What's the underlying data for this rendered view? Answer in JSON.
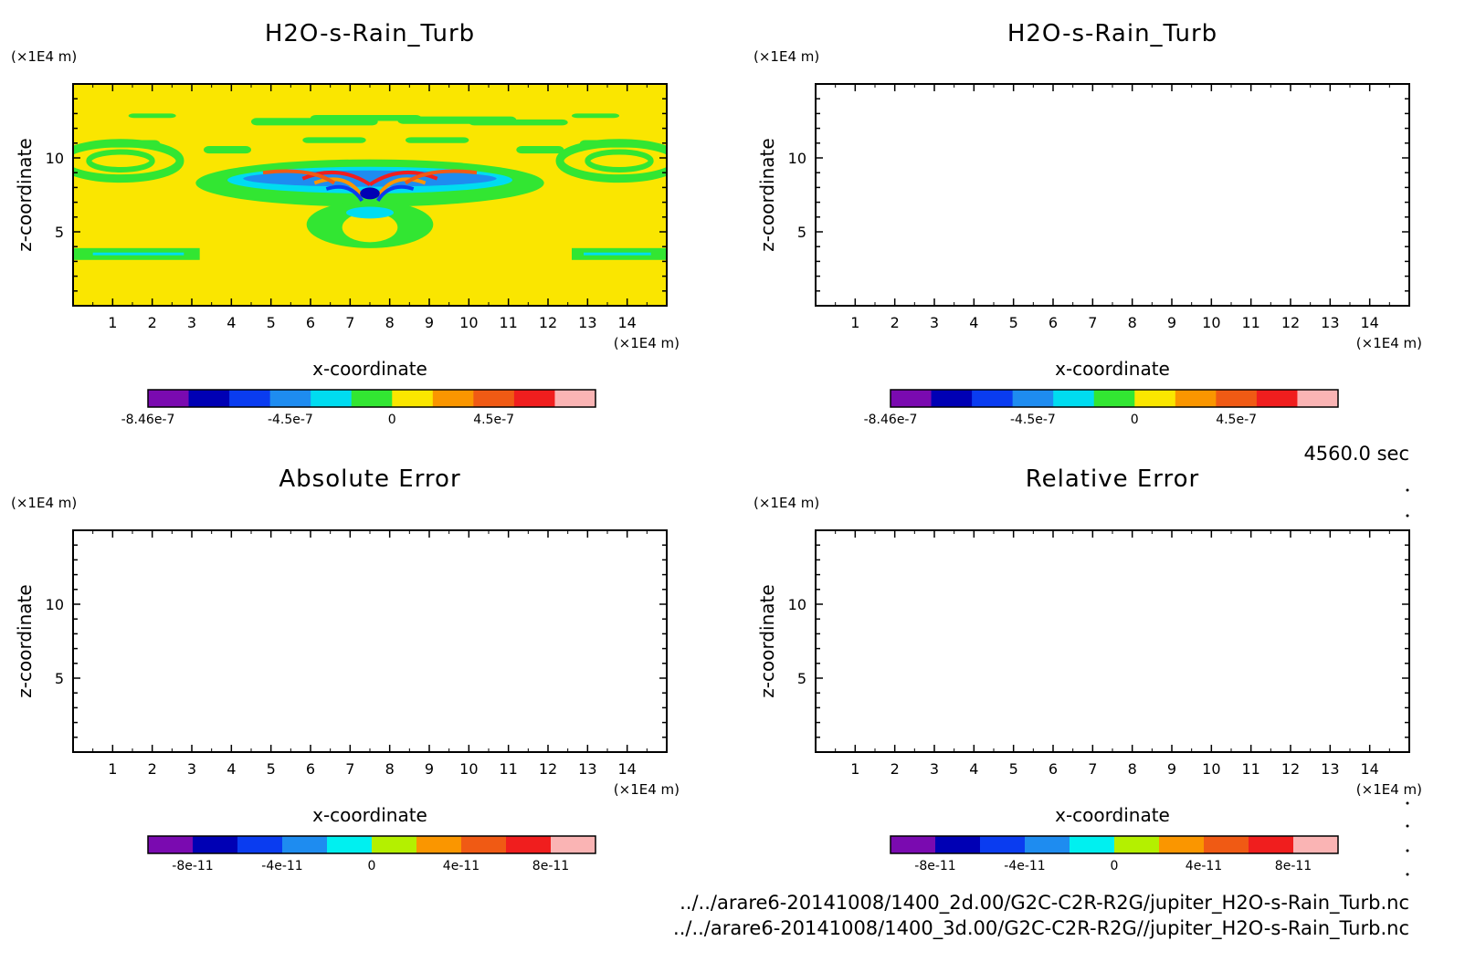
{
  "chart_data": [
    {
      "type": "heatmap",
      "title": "H2O-s-Rain_Turb",
      "xlabel": "x-coordinate",
      "ylabel": "z-coordinate",
      "x_unit": "(×1E4 m)",
      "y_unit": "(×1E4 m)",
      "xlim": [
        0,
        15
      ],
      "ylim": [
        0,
        15
      ],
      "x_ticks": [
        "1",
        "2",
        "3",
        "4",
        "5",
        "6",
        "7",
        "8",
        "9",
        "10",
        "11",
        "12",
        "13",
        "14"
      ],
      "y_ticks": [
        "5",
        "10"
      ],
      "colorbar": {
        "colors": [
          "#7a0ab0",
          "#0000b4",
          "#0a3cf0",
          "#1e8cf0",
          "#00dcf0",
          "#32e632",
          "#fae600",
          "#fa9600",
          "#f05a14",
          "#f01e1e",
          "#fab4b4"
        ],
        "labels": [
          "-8.46e-7",
          "-4.5e-7",
          "0",
          "4.5e-7"
        ],
        "label_positions": [
          0,
          3.5,
          6.0,
          8.5
        ]
      },
      "field": {
        "background": "#fae600",
        "regions": [
          {
            "type": "band",
            "z": 3.5,
            "x_ranges": [
              [
                0,
                3.2
              ],
              [
                12.6,
                15
              ]
            ],
            "value_color": "#32e632"
          },
          {
            "type": "plume_center",
            "x": 7.5,
            "z": 7.6,
            "value_color": "#0000b4"
          },
          {
            "type": "arcs",
            "x_range": [
              5.5,
              10.0
            ],
            "z_range": [
              7.5,
              9.5
            ],
            "value_colors": [
              "#f01e1e",
              "#0a3cf0",
              "#fa9600",
              "#1e8cf0"
            ]
          },
          {
            "type": "eddies",
            "x": [
              1.0,
              14.0
            ],
            "z": [
              9.5,
              9.5
            ],
            "value_color": "#32e632"
          }
        ]
      }
    },
    {
      "type": "heatmap",
      "title": "H2O-s-Rain_Turb",
      "xlabel": "x-coordinate",
      "ylabel": "z-coordinate",
      "x_unit": "(×1E4 m)",
      "y_unit": "(×1E4 m)",
      "xlim": [
        0,
        15
      ],
      "ylim": [
        0,
        15
      ],
      "x_ticks": [
        "1",
        "2",
        "3",
        "4",
        "5",
        "6",
        "7",
        "8",
        "9",
        "10",
        "11",
        "12",
        "13",
        "14"
      ],
      "y_ticks": [
        "5",
        "10"
      ],
      "colorbar": {
        "colors": [
          "#7a0ab0",
          "#0000b4",
          "#0a3cf0",
          "#1e8cf0",
          "#00dcf0",
          "#32e632",
          "#fae600",
          "#fa9600",
          "#f05a14",
          "#f01e1e",
          "#fab4b4"
        ],
        "labels": [
          "-8.46e-7",
          "-4.5e-7",
          "0",
          "4.5e-7"
        ],
        "label_positions": [
          0,
          3.5,
          6.0,
          8.5
        ]
      }
    },
    {
      "type": "heatmap",
      "title": "Absolute Error",
      "xlabel": "x-coordinate",
      "ylabel": "z-coordinate",
      "x_unit": "(×1E4 m)",
      "y_unit": "(×1E4 m)",
      "xlim": [
        0,
        15
      ],
      "ylim": [
        0,
        15
      ],
      "x_ticks": [
        "1",
        "2",
        "3",
        "4",
        "5",
        "6",
        "7",
        "8",
        "9",
        "10",
        "11",
        "12",
        "13",
        "14"
      ],
      "y_ticks": [
        "5",
        "10"
      ],
      "colorbar": {
        "colors": [
          "#7a0ab0",
          "#0000b4",
          "#0a3cf0",
          "#1e8cf0",
          "#00f0f0",
          "#b4f000",
          "#fa9600",
          "#f05a14",
          "#f01e1e",
          "#fab4b4"
        ],
        "labels": [
          "-8e-11",
          "-4e-11",
          "0",
          "4e-11",
          "8e-11"
        ],
        "label_positions": [
          1,
          3,
          5,
          7,
          9
        ]
      },
      "field": {
        "background": "#ffffff"
      }
    },
    {
      "type": "heatmap",
      "title": "Relative Error",
      "xlabel": "x-coordinate",
      "ylabel": "z-coordinate",
      "x_unit": "(×1E4 m)",
      "y_unit": "(×1E4 m)",
      "xlim": [
        0,
        15
      ],
      "ylim": [
        0,
        15
      ],
      "x_ticks": [
        "1",
        "2",
        "3",
        "4",
        "5",
        "6",
        "7",
        "8",
        "9",
        "10",
        "11",
        "12",
        "13",
        "14"
      ],
      "y_ticks": [
        "5",
        "10"
      ],
      "colorbar": {
        "colors": [
          "#7a0ab0",
          "#0000b4",
          "#0a3cf0",
          "#1e8cf0",
          "#00f0f0",
          "#b4f000",
          "#fa9600",
          "#f05a14",
          "#f01e1e",
          "#fab4b4"
        ],
        "labels": [
          "-8e-11",
          "-4e-11",
          "0",
          "4e-11",
          "8e-11"
        ],
        "label_positions": [
          1,
          3,
          5,
          7,
          9
        ]
      },
      "field": {
        "background": "#ffffff"
      }
    }
  ],
  "time_label": "4560.0 sec",
  "file_paths": [
    "../../arare6-20141008/1400_2d.00/G2C-C2R-R2G/jupiter_H2O-s-Rain_Turb.nc",
    "../../arare6-20141008/1400_3d.00/G2C-C2R-R2G//jupiter_H2O-s-Rain_Turb.nc"
  ]
}
